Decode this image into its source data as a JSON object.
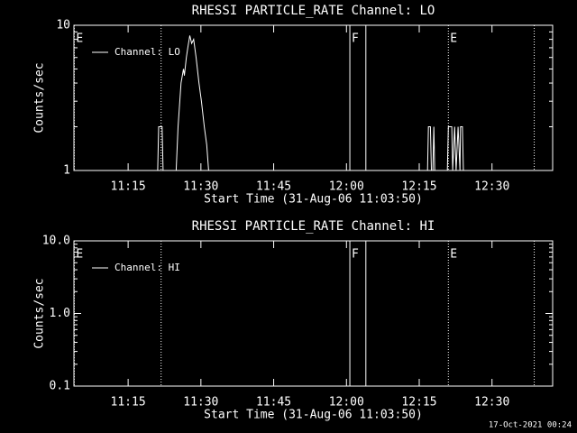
{
  "chart_data": [
    {
      "type": "line",
      "title": "RHESSI PARTICLE_RATE Channel: LO",
      "xlabel": "Start Time (31-Aug-06 11:03:50)",
      "ylabel": "Counts/sec",
      "log_y": true,
      "color": "#ffffff",
      "xlim": [
        663.83,
        762.5
      ],
      "xticks": [
        {
          "value": 675,
          "label": "11:15"
        },
        {
          "value": 690,
          "label": "11:30"
        },
        {
          "value": 705,
          "label": "11:45"
        },
        {
          "value": 720,
          "label": "12:00"
        },
        {
          "value": 735,
          "label": "12:15"
        },
        {
          "value": 750,
          "label": "12:30"
        }
      ],
      "ylim": [
        1,
        10
      ],
      "yticks": [
        1,
        10
      ],
      "legend": "upper left",
      "markers": [
        {
          "x": 663.9,
          "label": "E",
          "style": "dotted"
        },
        {
          "x": 681.8,
          "style": "dotted"
        },
        {
          "x": 720.7,
          "label": "F",
          "style": "solid"
        },
        {
          "x": 724.0,
          "style": "solid"
        },
        {
          "x": 741.0,
          "label": "E",
          "style": "dotted"
        },
        {
          "x": 758.7,
          "style": "dotted"
        }
      ],
      "series": [
        {
          "name": "Channel: LO",
          "color": "#ffffff",
          "x": [
            681.1,
            681.3,
            682.0,
            682.2,
            null,
            684.9,
            685.3,
            685.9,
            686.4,
            686.6,
            687.0,
            687.3,
            687.7,
            688.1,
            688.5,
            689.0,
            689.6,
            690.1,
            690.7,
            691.2,
            691.6,
            null,
            736.7,
            736.9,
            737.3,
            737.5,
            737.8,
            738.0,
            738.2,
            null,
            740.8,
            741.0,
            741.7,
            741.9,
            742.3,
            742.6,
            743.0,
            743.4,
            743.5,
            743.9,
            744.1
          ],
          "values": [
            1,
            2,
            2,
            1,
            null,
            1,
            2,
            4,
            5,
            4.5,
            6,
            7,
            8.5,
            7.5,
            8,
            6,
            4,
            3,
            2,
            1.5,
            1,
            null,
            1,
            2,
            2,
            1,
            1,
            2,
            1,
            null,
            1,
            2,
            2,
            1,
            2,
            1,
            2,
            1,
            2,
            2,
            1
          ]
        }
      ]
    },
    {
      "type": "line",
      "title": "RHESSI PARTICLE_RATE Channel: HI",
      "xlabel": "Start Time (31-Aug-06 11:03:50)",
      "ylabel": "Counts/sec",
      "log_y": true,
      "color": "#ffffff",
      "xlim": [
        663.83,
        762.5
      ],
      "xticks": [
        {
          "value": 675,
          "label": "11:15"
        },
        {
          "value": 690,
          "label": "11:30"
        },
        {
          "value": 705,
          "label": "11:45"
        },
        {
          "value": 720,
          "label": "12:00"
        },
        {
          "value": 735,
          "label": "12:15"
        },
        {
          "value": 750,
          "label": "12:30"
        }
      ],
      "ylim": [
        0.1,
        10
      ],
      "yticks": [
        0.1,
        {
          "value": 1,
          "label": "1.0"
        },
        {
          "value": 10,
          "label": "10.0"
        }
      ],
      "legend": "upper left",
      "markers": [
        {
          "x": 663.9,
          "label": "E",
          "style": "dotted"
        },
        {
          "x": 681.8,
          "style": "dotted"
        },
        {
          "x": 720.7,
          "label": "F",
          "style": "solid"
        },
        {
          "x": 724.0,
          "style": "solid"
        },
        {
          "x": 741.0,
          "label": "E",
          "style": "dotted"
        },
        {
          "x": 758.7,
          "style": "dotted"
        }
      ],
      "series": [
        {
          "name": "Channel: HI",
          "color": "#ffffff",
          "x": [],
          "values": []
        }
      ]
    }
  ],
  "footer": "17-Oct-2021 00:24"
}
